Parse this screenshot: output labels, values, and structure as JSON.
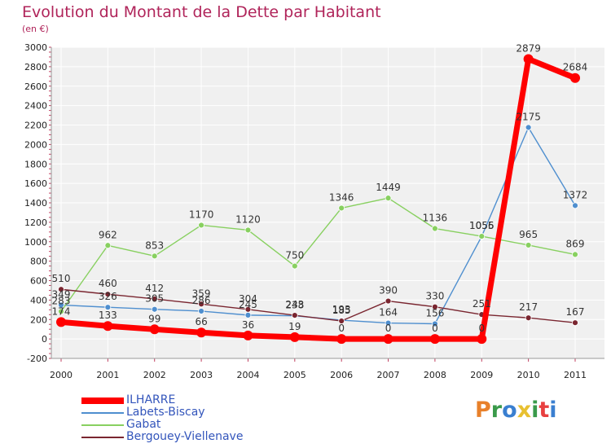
{
  "chart_data": {
    "type": "line",
    "title": "Evolution du Montant de la Dette par Habitant",
    "subtitle": "(en €)",
    "categories": [
      "2000",
      "2001",
      "2002",
      "2003",
      "2004",
      "2005",
      "2006",
      "2007",
      "2008",
      "2009",
      "2010",
      "2011"
    ],
    "ylim": [
      -200,
      3000
    ],
    "yticks": [
      -200,
      0,
      200,
      400,
      600,
      800,
      1000,
      1200,
      1400,
      1600,
      1800,
      2000,
      2200,
      2400,
      2600,
      2800,
      3000
    ],
    "ytick_labels": [
      "-200",
      "0",
      "200",
      "400",
      "600",
      "800",
      "1000",
      "1200",
      "1400",
      "1600",
      "1800",
      "2000",
      "2200",
      "2400",
      "2600",
      "2800",
      "3000"
    ],
    "grid": true,
    "series": [
      {
        "name": "ILHARRE",
        "color": "#ff0000",
        "values": [
          174,
          133,
          99,
          66,
          36,
          19,
          0,
          0,
          0,
          0,
          2879,
          2684
        ],
        "labels": [
          "174",
          "133",
          "99",
          "66",
          "36",
          "19",
          "0",
          "0",
          "0",
          "0",
          "2879",
          "2684"
        ]
      },
      {
        "name": "Labets-Biscay",
        "color": "#4f8fcf",
        "values": [
          349,
          326,
          305,
          286,
          245,
          238,
          193,
          164,
          156,
          1055,
          2175,
          1372
        ],
        "labels": [
          "349",
          "326",
          "305",
          "286",
          "245",
          "238",
          "193",
          "164",
          "156",
          "1055",
          "2175",
          "1372"
        ]
      },
      {
        "name": "Gabat",
        "color": "#88d060",
        "values": [
          283,
          962,
          853,
          1170,
          1120,
          750,
          1346,
          1449,
          1136,
          1056,
          965,
          869
        ],
        "labels": [
          "283",
          "962",
          "853",
          "1170",
          "1120",
          "750",
          "1346",
          "1449",
          "1136",
          "1056",
          "965",
          "869"
        ]
      },
      {
        "name": "Bergouey-Viellenave",
        "color": "#7a2630",
        "values": [
          510,
          460,
          412,
          359,
          304,
          243,
          185,
          390,
          330,
          251,
          217,
          167
        ],
        "labels": [
          "510",
          "460",
          "412",
          "359",
          "304",
          "243",
          "185",
          "390",
          "330",
          "251",
          "217",
          "167"
        ]
      }
    ],
    "legend": {
      "placement": "bottom-left"
    }
  },
  "brand": {
    "letters": [
      {
        "ch": "P",
        "color": "#e8802a"
      },
      {
        "ch": "r",
        "color": "#3a9a4a"
      },
      {
        "ch": "o",
        "color": "#3a7fd0"
      },
      {
        "ch": "x",
        "color": "#e8c030"
      },
      {
        "ch": "i",
        "color": "#3a9a4a"
      },
      {
        "ch": "t",
        "color": "#e84040"
      },
      {
        "ch": "i",
        "color": "#3a7fd0"
      }
    ]
  }
}
